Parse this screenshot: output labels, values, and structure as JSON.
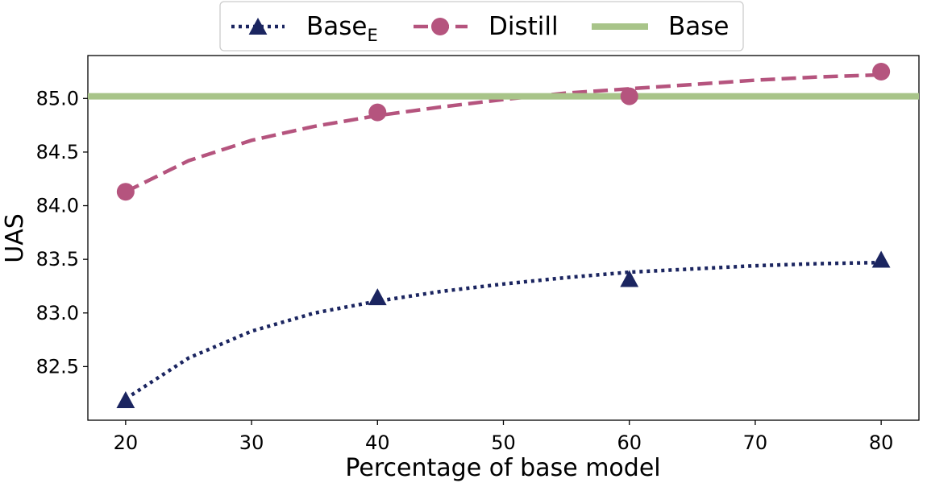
{
  "chart_data": {
    "type": "line",
    "title": "",
    "xlabel": "Percentage of base model",
    "ylabel": "UAS",
    "xlim": [
      17,
      83
    ],
    "ylim": [
      82.0,
      85.4
    ],
    "xticks": [
      "20",
      "30",
      "40",
      "50",
      "60",
      "70",
      "80"
    ],
    "yticks": [
      "82.5",
      "83.0",
      "83.5",
      "84.0",
      "84.5",
      "85.0"
    ],
    "grid": false,
    "legend_position": "top-center, above plot",
    "series": [
      {
        "name": "Base",
        "name_subscript": "E",
        "style": "dotted",
        "marker": "triangle",
        "color": "#1b2560",
        "x": [
          20,
          40,
          60,
          80
        ],
        "values": [
          82.18,
          83.14,
          83.31,
          83.49
        ],
        "fit_curve": {
          "x": [
            20,
            25,
            30,
            35,
            40,
            45,
            50,
            55,
            60,
            65,
            70,
            75,
            80
          ],
          "values": [
            82.2,
            82.58,
            82.83,
            83.0,
            83.11,
            83.2,
            83.27,
            83.33,
            83.38,
            83.41,
            83.44,
            83.46,
            83.47
          ]
        }
      },
      {
        "name": "Distill",
        "style": "dashed",
        "marker": "circle",
        "color": "#b5547e",
        "x": [
          20,
          40,
          60,
          80
        ],
        "values": [
          84.13,
          84.87,
          85.02,
          85.25
        ],
        "fit_curve": {
          "x": [
            20,
            25,
            30,
            35,
            40,
            45,
            50,
            55,
            60,
            65,
            70,
            75,
            80
          ],
          "values": [
            84.13,
            84.42,
            84.61,
            84.74,
            84.84,
            84.92,
            84.99,
            85.05,
            85.09,
            85.13,
            85.17,
            85.2,
            85.22
          ]
        }
      },
      {
        "name": "Base",
        "style": "solid",
        "marker": "none",
        "color": "#a8c489",
        "value": 85.02
      }
    ]
  }
}
